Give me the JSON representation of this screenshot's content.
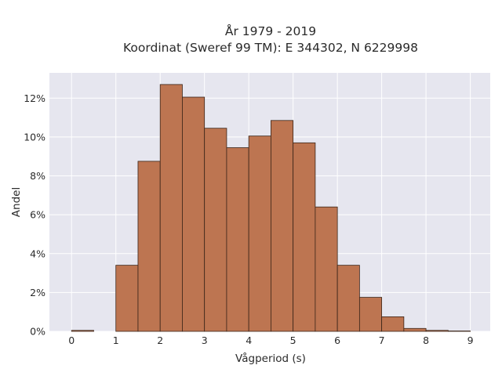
{
  "chart_data": {
    "type": "bar",
    "title": "År 1979 - 2019",
    "subtitle": "Koordinat (Sweref 99 TM): E 344302, N 6229998",
    "xlabel": "Vågperiod (s)",
    "ylabel": "Andel",
    "xlim": [
      -0.5,
      9.45
    ],
    "ylim": [
      0,
      13.3
    ],
    "x_ticks": [
      0,
      1,
      2,
      3,
      4,
      5,
      6,
      7,
      8,
      9
    ],
    "y_ticks": [
      {
        "value": 0,
        "label": "0%"
      },
      {
        "value": 2,
        "label": "2%"
      },
      {
        "value": 4,
        "label": "4%"
      },
      {
        "value": 6,
        "label": "6%"
      },
      {
        "value": 8,
        "label": "8%"
      },
      {
        "value": 10,
        "label": "10%"
      },
      {
        "value": 12,
        "label": "12%"
      }
    ],
    "bin_width": 0.5,
    "bins": [
      {
        "start": 0.0,
        "value": 0.05
      },
      {
        "start": 0.5,
        "value": 0.0
      },
      {
        "start": 1.0,
        "value": 3.4
      },
      {
        "start": 1.5,
        "value": 8.75
      },
      {
        "start": 2.0,
        "value": 12.7
      },
      {
        "start": 2.5,
        "value": 12.05
      },
      {
        "start": 3.0,
        "value": 10.45
      },
      {
        "start": 3.5,
        "value": 9.45
      },
      {
        "start": 4.0,
        "value": 10.05
      },
      {
        "start": 4.5,
        "value": 10.85
      },
      {
        "start": 5.0,
        "value": 9.7
      },
      {
        "start": 5.5,
        "value": 6.4
      },
      {
        "start": 6.0,
        "value": 3.4
      },
      {
        "start": 6.5,
        "value": 1.75
      },
      {
        "start": 7.0,
        "value": 0.75
      },
      {
        "start": 7.5,
        "value": 0.15
      },
      {
        "start": 8.0,
        "value": 0.05
      },
      {
        "start": 8.5,
        "value": 0.02
      }
    ],
    "grid": true,
    "colors": {
      "bar_fill": "#bd7551",
      "bar_edge": "#3a2418",
      "plot_bg": "#e6e6ef",
      "grid": "#ffffff"
    }
  }
}
